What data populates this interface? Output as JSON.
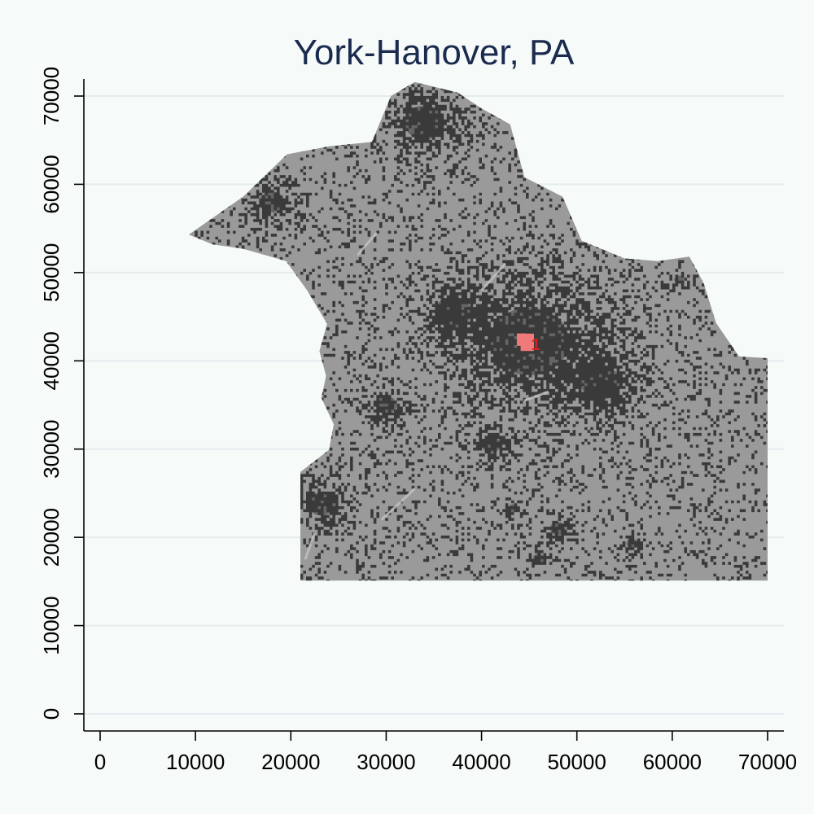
{
  "chart_data": {
    "type": "map",
    "title": "York-Hanover, PA",
    "xlabel": "",
    "ylabel": "",
    "xlim": [
      0,
      70000
    ],
    "ylim": [
      0,
      70000
    ],
    "x_ticks": [
      0,
      10000,
      20000,
      30000,
      40000,
      50000,
      60000,
      70000
    ],
    "y_ticks": [
      0,
      10000,
      20000,
      30000,
      40000,
      50000,
      60000,
      70000
    ],
    "x_tick_labels": [
      "0",
      "10000",
      "20000",
      "30000",
      "40000",
      "50000",
      "60000",
      "70000"
    ],
    "y_tick_labels": [
      "0",
      "10000",
      "20000",
      "30000",
      "40000",
      "50000",
      "60000",
      "70000"
    ],
    "grid": "horizontal",
    "region_outline": [
      [
        9300,
        54300
      ],
      [
        15000,
        58600
      ],
      [
        19600,
        63400
      ],
      [
        24000,
        64300
      ],
      [
        28500,
        64800
      ],
      [
        30500,
        70000
      ],
      [
        33000,
        71600
      ],
      [
        37500,
        70400
      ],
      [
        40000,
        68600
      ],
      [
        43000,
        66800
      ],
      [
        44500,
        60800
      ],
      [
        48500,
        58600
      ],
      [
        50500,
        53600
      ],
      [
        55000,
        51600
      ],
      [
        58500,
        51300
      ],
      [
        61800,
        51800
      ],
      [
        63300,
        48800
      ],
      [
        64600,
        44300
      ],
      [
        67000,
        40500
      ],
      [
        70000,
        40300
      ],
      [
        70000,
        15100
      ],
      [
        21000,
        15100
      ],
      [
        21000,
        27400
      ],
      [
        24000,
        29900
      ],
      [
        24500,
        32800
      ],
      [
        23200,
        35800
      ],
      [
        23700,
        38300
      ],
      [
        23000,
        41100
      ],
      [
        23800,
        44200
      ],
      [
        21700,
        48000
      ],
      [
        19500,
        51300
      ],
      [
        15000,
        52700
      ],
      [
        11800,
        53200
      ]
    ],
    "urban_clusters": [
      {
        "x": 45000,
        "y": 42200,
        "r": 7600
      },
      {
        "x": 52500,
        "y": 37500,
        "r": 3800
      },
      {
        "x": 37000,
        "y": 45500,
        "r": 3500
      },
      {
        "x": 34000,
        "y": 67000,
        "r": 3800
      },
      {
        "x": 18000,
        "y": 58000,
        "r": 2400
      },
      {
        "x": 23200,
        "y": 23800,
        "r": 2600
      },
      {
        "x": 48000,
        "y": 21000,
        "r": 1500
      },
      {
        "x": 46000,
        "y": 17600,
        "r": 1100
      },
      {
        "x": 55800,
        "y": 19300,
        "r": 1100
      },
      {
        "x": 43300,
        "y": 23300,
        "r": 900
      },
      {
        "x": 60700,
        "y": 49200,
        "r": 900
      },
      {
        "x": 30000,
        "y": 35000,
        "r": 2000
      },
      {
        "x": 41000,
        "y": 30500,
        "r": 1800
      }
    ],
    "highlight_tracts": [
      {
        "x": 44800,
        "y": 42100,
        "r": 700
      },
      {
        "x": 44200,
        "y": 42400,
        "r": 500
      }
    ],
    "highlight_label": "1",
    "highlight_label_position": [
      45700,
      41700
    ],
    "colors": {
      "background": "#f6faf8",
      "land": "#9a9a9a",
      "developed": "#3a3a3a",
      "highlight": "#f07a7a",
      "highlight_label": "#d42020",
      "title": "#1b2b4f"
    }
  }
}
